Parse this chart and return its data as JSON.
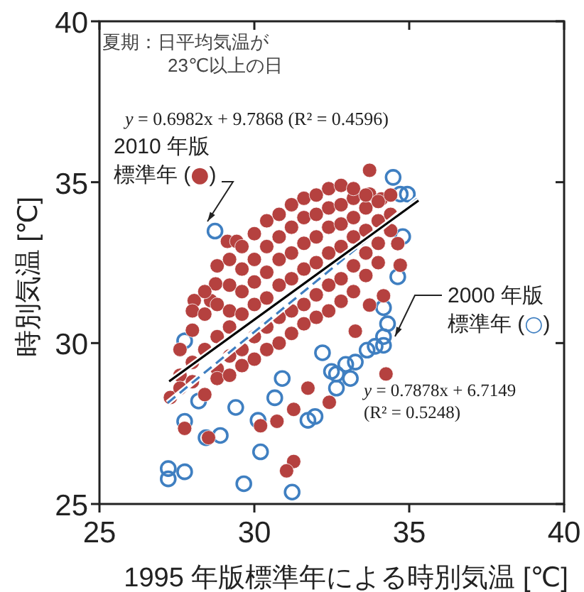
{
  "chart_data": {
    "type": "scatter",
    "xlabel": "1995 年版標準年による時別気温 [℃]",
    "ylabel": "時別気温 [℃]",
    "xlim": [
      25,
      40
    ],
    "ylim": [
      25,
      40
    ],
    "xticks": [
      25,
      30,
      35,
      40
    ],
    "yticks": [
      25,
      30,
      35,
      40
    ],
    "grid": false,
    "marker": "circle",
    "annotations": [
      "夏期：日平均気温が\n23℃以上の日",
      "y = 0.6982x + 9.7868  (R² = 0.4596)",
      "y = 0.7878x + 6.7149\n(R² = 0.5248)",
      "2000 年版標準年 (○)",
      "2010 年版標準年 (●)"
    ],
    "series": [
      {
        "color": "#3f7fc1",
        "x": [
          28.73,
          27.75,
          27.22,
          27.22,
          27.75,
          29.66,
          31.22,
          30.2,
          30.12,
          31.73,
          27.75,
          28.44,
          28.9,
          32.49,
          30.66,
          34.48,
          34.71,
          34.79,
          34.63,
          34.17,
          34.17,
          34.17,
          33.64,
          33.26,
          32.95,
          32.65,
          33.1,
          32.65,
          31.96,
          34.94,
          28.2,
          33.9,
          34.3,
          30.9,
          29.4,
          32.2
        ],
        "values": [
          33.48,
          30.07,
          26.1,
          25.78,
          26.0,
          25.63,
          25.37,
          26.62,
          27.6,
          27.6,
          27.57,
          27.06,
          27.13,
          29.12,
          28.3,
          35.15,
          34.63,
          33.31,
          32.06,
          31.1,
          30.2,
          29.93,
          29.78,
          29.41,
          29.34,
          29.04,
          28.9,
          28.6,
          27.72,
          34.63,
          28.2,
          29.9,
          30.6,
          28.9,
          28.0,
          29.7
        ]
      },
      {
        "color": "#b5413f",
        "x": [
          33.72,
          29.13,
          29.43,
          28.06,
          28.59,
          28.75,
          27.29,
          27.75,
          28.52,
          30.2,
          30.73,
          31.27,
          31.73,
          32.42,
          31.27,
          31.04,
          34.25,
          34.17,
          33.72,
          33.26,
          34.63,
          34.71,
          33.72,
          34.1,
          27.6,
          27.6,
          27.6,
          28.0,
          28.0,
          28.0,
          28.0,
          28.4,
          28.4,
          28.4,
          28.4,
          28.8,
          28.8,
          28.8,
          28.8,
          28.8,
          29.2,
          29.2,
          29.2,
          29.2,
          29.2,
          29.2,
          29.6,
          29.6,
          29.6,
          29.6,
          29.6,
          29.6,
          30.0,
          30.0,
          30.0,
          30.0,
          30.0,
          30.0,
          30.4,
          30.4,
          30.4,
          30.4,
          30.4,
          30.4,
          30.8,
          30.8,
          30.8,
          30.8,
          30.8,
          30.8,
          31.2,
          31.2,
          31.2,
          31.2,
          31.2,
          31.2,
          31.6,
          31.6,
          31.6,
          31.6,
          31.6,
          31.6,
          32.0,
          32.0,
          32.0,
          32.0,
          32.0,
          32.0,
          32.4,
          32.4,
          32.4,
          32.4,
          32.4,
          32.4,
          32.8,
          32.8,
          32.8,
          32.8,
          32.8,
          32.8,
          33.2,
          33.2,
          33.2,
          33.2,
          33.2,
          33.2,
          33.6,
          33.6,
          33.6,
          33.6,
          33.6,
          34.0,
          34.0,
          34.0,
          34.0,
          34.4,
          34.4,
          34.4
        ],
        "values": [
          35.37,
          33.16,
          33.16,
          31.32,
          31.32,
          31.84,
          28.31,
          27.35,
          27.06,
          27.43,
          27.57,
          27.94,
          28.6,
          28.16,
          26.32,
          26.03,
          29.04,
          31.47,
          31.18,
          30.37,
          33.09,
          32.42,
          34.63,
          34.48,
          29.0,
          28.6,
          29.8,
          29.4,
          30.4,
          28.8,
          31.0,
          29.8,
          30.9,
          28.4,
          31.6,
          30.2,
          31.2,
          29.2,
          32.4,
          28.9,
          30.5,
          31.8,
          29.6,
          32.6,
          29.0,
          31.0,
          30.9,
          32.3,
          29.8,
          33.0,
          31.6,
          29.3,
          31.2,
          32.6,
          30.2,
          33.4,
          29.5,
          31.9,
          31.4,
          33.0,
          30.5,
          33.8,
          29.8,
          32.2,
          31.8,
          33.3,
          30.8,
          34.0,
          30.0,
          32.6,
          32.0,
          33.6,
          31.0,
          34.3,
          30.3,
          32.8,
          32.3,
          33.9,
          31.2,
          34.5,
          30.6,
          33.1,
          32.5,
          34.0,
          31.5,
          34.6,
          30.8,
          33.3,
          32.8,
          34.2,
          31.8,
          34.8,
          31.0,
          33.6,
          33.0,
          34.3,
          32.0,
          34.9,
          31.3,
          33.7,
          33.3,
          34.5,
          32.4,
          34.8,
          31.6,
          33.9,
          33.5,
          34.2,
          32.8,
          34.6,
          32.1,
          33.8,
          34.4,
          33.1,
          32.5,
          34.0,
          33.5,
          34.6
        ]
      },
      {
        "type": "line",
        "marker": "none",
        "color": "#3f7fc1",
        "line_style": "dashed",
        "x": [
          27.2,
          35.3
        ],
        "values": [
          28.14,
          34.52
        ]
      },
      {
        "type": "line",
        "marker": "none",
        "color": "#000000",
        "line_style": "solid",
        "x": [
          27.25,
          35.3
        ],
        "values": [
          28.81,
          34.43
        ]
      }
    ]
  }
}
